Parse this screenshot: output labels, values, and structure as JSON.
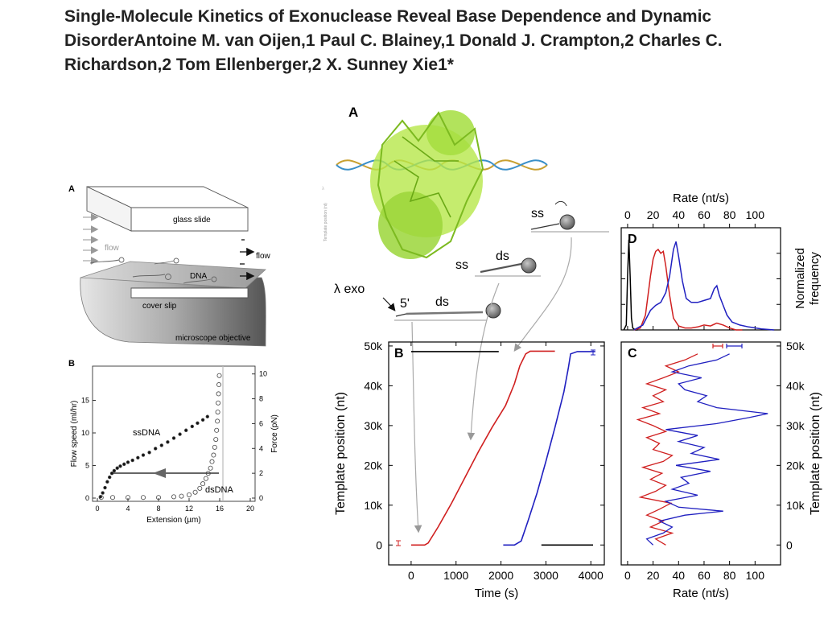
{
  "title": "Single-Molecule Kinetics of  Exonuclease Reveal Base Dependence and Dynamic DisorderAntoine M. van Oijen,1 Paul C. Blainey,1 Donald J. Crampton,2 Charles C. Richardson,2 Tom Ellenberger,2 X. Sunney Xie1*",
  "left_figure": {
    "panel_a": {
      "letter": "A",
      "glass_slide": "glass slide",
      "flow_left": "flow",
      "flow_right": "flow",
      "dna": "DNA",
      "cover_slip": "cover slip",
      "objective": "microscope objective"
    },
    "panel_b": {
      "letter": "B",
      "ssdna": "ssDNA",
      "dsdna": "dsDNA"
    }
  },
  "right_figure": {
    "panel_a": {
      "letter": "A",
      "ss1": "ss",
      "ss2": "ss",
      "ds1": "ds",
      "ds2": "ds",
      "lambda_exo": "λ exo",
      "five_prime": "5'"
    },
    "panel_d": {
      "letter": "D",
      "ylabel_1": "Normalized",
      "ylabel_2": "frequency"
    },
    "panel_b": {
      "letter": "B"
    },
    "panel_c": {
      "letter": "C"
    }
  },
  "chart_data": [
    {
      "id": "left-b",
      "type": "scatter",
      "title": "",
      "xlabel": "Extension (µm)",
      "ylabel": "Flow speed (ml/hr)",
      "y2label": "Force (pN)",
      "xlim": [
        0,
        20
      ],
      "ylim": [
        0,
        20
      ],
      "y2lim": [
        0,
        10.5
      ],
      "xticks": [
        0,
        4,
        8,
        12,
        16,
        20
      ],
      "yticks": [
        0,
        5,
        10,
        15
      ],
      "y2ticks": [
        0,
        2,
        4,
        6,
        8,
        10
      ],
      "series": [
        {
          "name": "ssDNA",
          "marker": "filled",
          "x": [
            0.4,
            0.7,
            1.0,
            1.3,
            1.6,
            1.9,
            2.2,
            2.6,
            3.0,
            3.5,
            4.0,
            4.6,
            5.3,
            6.0,
            6.8,
            7.6,
            8.4,
            9.2,
            10.0,
            10.8,
            11.6,
            12.4,
            13.1,
            13.8,
            14.4
          ],
          "y": [
            0.2,
            0.8,
            1.6,
            2.5,
            3.2,
            3.8,
            4.2,
            4.6,
            4.9,
            5.2,
            5.5,
            5.8,
            6.2,
            6.6,
            7.0,
            7.6,
            8.1,
            8.6,
            9.2,
            9.8,
            10.4,
            11.0,
            11.5,
            12.0,
            12.5
          ]
        },
        {
          "name": "dsDNA",
          "marker": "open",
          "x": [
            0.5,
            2.0,
            4.0,
            6.0,
            8.0,
            10.0,
            11.0,
            12.0,
            12.8,
            13.4,
            13.8,
            14.2,
            14.5,
            14.8,
            15.0,
            15.2,
            15.35,
            15.5,
            15.6,
            15.7,
            15.75,
            15.8,
            15.85,
            15.9,
            15.95
          ],
          "y": [
            0.1,
            0.1,
            0.1,
            0.1,
            0.1,
            0.2,
            0.3,
            0.5,
            0.9,
            1.5,
            2.2,
            3.0,
            3.8,
            4.6,
            5.6,
            6.6,
            7.8,
            9.0,
            10.4,
            11.8,
            13.2,
            14.6,
            16.0,
            17.4,
            18.8
          ]
        }
      ],
      "annotations": [
        "ssDNA",
        "dsDNA"
      ]
    },
    {
      "id": "right-d",
      "type": "line",
      "title": "",
      "xlabel": "Rate (nt/s)",
      "ylabel": "Normalized frequency",
      "xlim": [
        -5,
        120
      ],
      "xticks": [
        0,
        20,
        40,
        60,
        80,
        100
      ],
      "series": [
        {
          "name": "",
          "color": "#000000",
          "x": [
            -3,
            -1,
            0,
            1,
            2,
            3,
            4,
            6,
            8
          ],
          "y": [
            0,
            0.05,
            0.55,
            0.92,
            0.55,
            0.12,
            0.02,
            0,
            0
          ]
        },
        {
          "name": "",
          "color": "#d02020",
          "x": [
            5,
            10,
            14,
            18,
            20,
            22,
            24,
            26,
            28,
            30,
            33,
            36,
            40,
            45,
            50,
            55,
            60,
            65,
            70,
            75,
            80,
            85,
            90
          ],
          "y": [
            0,
            0.02,
            0.15,
            0.55,
            0.72,
            0.8,
            0.82,
            0.78,
            0.8,
            0.65,
            0.35,
            0.12,
            0.04,
            0.02,
            0.02,
            0.03,
            0.05,
            0.04,
            0.07,
            0.05,
            0.02,
            0,
            0
          ]
        },
        {
          "name": "",
          "color": "#2020c0",
          "x": [
            5,
            12,
            18,
            22,
            26,
            30,
            33,
            36,
            38,
            40,
            43,
            46,
            50,
            55,
            60,
            65,
            68,
            70,
            72,
            75,
            78,
            82,
            88,
            95,
            105,
            115
          ],
          "y": [
            0,
            0.05,
            0.2,
            0.25,
            0.28,
            0.38,
            0.55,
            0.82,
            0.9,
            0.75,
            0.5,
            0.32,
            0.28,
            0.28,
            0.3,
            0.32,
            0.42,
            0.45,
            0.35,
            0.25,
            0.15,
            0.08,
            0.05,
            0.03,
            0.01,
            0
          ]
        }
      ]
    },
    {
      "id": "right-b",
      "type": "line",
      "title": "",
      "xlabel": "Time (s)",
      "ylabel": "Template position (nt)",
      "xlim": [
        -500,
        4300
      ],
      "ylim": [
        -5000,
        51000
      ],
      "xticks": [
        0,
        1000,
        2000,
        3000,
        4000
      ],
      "yticks": [
        0,
        10000,
        20000,
        30000,
        40000,
        50000
      ],
      "ytick_labels": [
        "0",
        "10k",
        "20k",
        "30k",
        "40k",
        "50k"
      ],
      "series": [
        {
          "name": "",
          "color": "#000000",
          "x": [
            0,
            1950
          ],
          "y": [
            48600,
            48600
          ]
        },
        {
          "name": "",
          "color": "#000000",
          "x": [
            2900,
            4050
          ],
          "y": [
            0,
            0
          ]
        },
        {
          "name": "",
          "color": "#d02020",
          "x": [
            0,
            300,
            380,
            600,
            900,
            1200,
            1500,
            1800,
            2100,
            2300,
            2420,
            2550,
            2650,
            2800,
            3200
          ],
          "y": [
            0,
            0,
            500,
            4500,
            10500,
            17000,
            23500,
            29500,
            35000,
            40500,
            45000,
            48000,
            48700,
            48700,
            48700
          ]
        },
        {
          "name": "",
          "color": "#2020c0",
          "x": [
            2050,
            2300,
            2450,
            2600,
            2800,
            3000,
            3200,
            3400,
            3500,
            3550,
            3700,
            4100
          ],
          "y": [
            0,
            0,
            1000,
            6000,
            13000,
            21000,
            29500,
            38500,
            44500,
            48000,
            48600,
            48600
          ]
        }
      ]
    },
    {
      "id": "right-c",
      "type": "line",
      "title": "",
      "xlabel": "Rate (nt/s)",
      "ylabel": "Template position (nt)",
      "xlim": [
        -5,
        120
      ],
      "ylim": [
        -5000,
        51000
      ],
      "xticks": [
        0,
        20,
        40,
        60,
        80,
        100
      ],
      "yticks": [
        0,
        10000,
        20000,
        30000,
        40000,
        50000
      ],
      "ytick_labels": [
        "0",
        "10k",
        "20k",
        "30k",
        "40k",
        "50k"
      ],
      "series": [
        {
          "name": "",
          "color": "#d02020",
          "y": [
            0,
            1500,
            3000,
            4500,
            6000,
            7500,
            9000,
            10500,
            12000,
            13500,
            15000,
            16500,
            18000,
            19500,
            21000,
            22500,
            24000,
            25500,
            27000,
            28500,
            30000,
            31500,
            33000,
            34500,
            36000,
            37500,
            39000,
            40500,
            42000,
            43500,
            45000,
            46500,
            48000
          ],
          "x": [
            30,
            22,
            35,
            18,
            28,
            15,
            25,
            34,
            10,
            22,
            30,
            18,
            27,
            12,
            28,
            35,
            20,
            25,
            15,
            30,
            20,
            8,
            25,
            12,
            28,
            20,
            30,
            15,
            28,
            40,
            30,
            45,
            55
          ]
        },
        {
          "name": "",
          "color": "#2020c0",
          "y": [
            0,
            1500,
            3000,
            4500,
            6000,
            7500,
            8500,
            9500,
            11000,
            12500,
            14000,
            15500,
            17000,
            18500,
            20000,
            21500,
            23000,
            24500,
            26000,
            27500,
            29000,
            30500,
            32000,
            33000,
            34500,
            36000,
            37500,
            39000,
            40500,
            42000,
            43500,
            45000,
            46500,
            48000
          ],
          "x": [
            20,
            15,
            28,
            35,
            25,
            45,
            75,
            40,
            30,
            55,
            35,
            48,
            42,
            65,
            38,
            72,
            50,
            60,
            40,
            55,
            30,
            70,
            95,
            110,
            70,
            55,
            62,
            45,
            40,
            58,
            35,
            48,
            70,
            80
          ]
        }
      ]
    }
  ]
}
